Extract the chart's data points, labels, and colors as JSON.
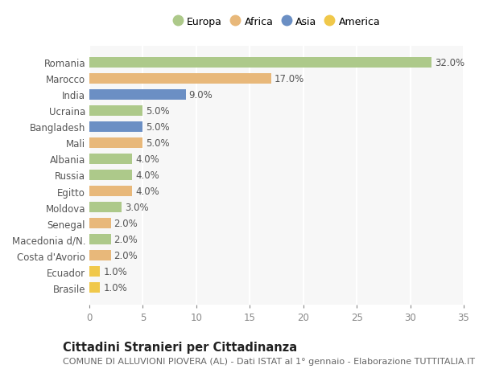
{
  "categories": [
    "Romania",
    "Marocco",
    "India",
    "Ucraina",
    "Bangladesh",
    "Mali",
    "Albania",
    "Russia",
    "Egitto",
    "Moldova",
    "Senegal",
    "Macedonia d/N.",
    "Costa d'Avorio",
    "Ecuador",
    "Brasile"
  ],
  "values": [
    32.0,
    17.0,
    9.0,
    5.0,
    5.0,
    5.0,
    4.0,
    4.0,
    4.0,
    3.0,
    2.0,
    2.0,
    2.0,
    1.0,
    1.0
  ],
  "continents": [
    "Europa",
    "Africa",
    "Asia",
    "Europa",
    "Asia",
    "Africa",
    "Europa",
    "Europa",
    "Africa",
    "Europa",
    "Africa",
    "Europa",
    "Africa",
    "America",
    "America"
  ],
  "colors": {
    "Europa": "#adc98a",
    "Africa": "#e8b87a",
    "Asia": "#6b8fc4",
    "America": "#f0c84a"
  },
  "title": "Cittadini Stranieri per Cittadinanza",
  "subtitle": "COMUNE DI ALLUVIONI PIOVERA (AL) - Dati ISTAT al 1° gennaio - Elaborazione TUTTITALIA.IT",
  "xlim": [
    0,
    35
  ],
  "xticks": [
    0,
    5,
    10,
    15,
    20,
    25,
    30,
    35
  ],
  "background_color": "#ffffff",
  "plot_bg_color": "#f7f7f7",
  "grid_color": "#ffffff",
  "bar_height": 0.62,
  "label_fontsize": 8.5,
  "tick_fontsize": 8.5,
  "title_fontsize": 10.5,
  "subtitle_fontsize": 8.0,
  "legend_order": [
    "Europa",
    "Africa",
    "Asia",
    "America"
  ]
}
